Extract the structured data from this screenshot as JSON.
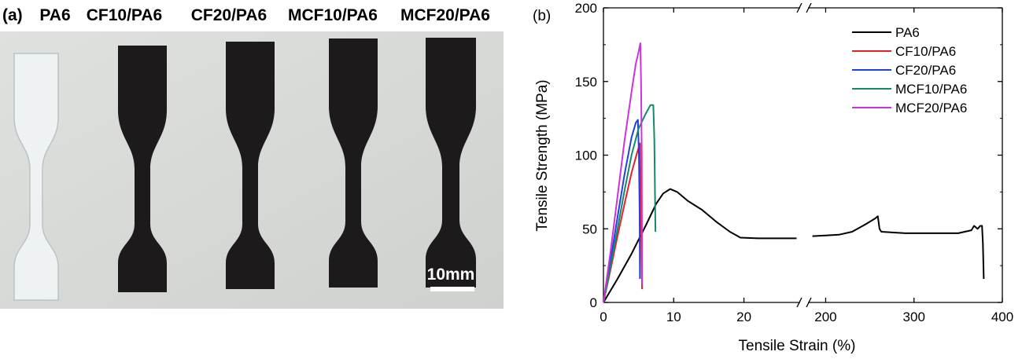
{
  "photo": {
    "panel_label": "(a)",
    "specimens": [
      "PA6",
      "CF10/PA6",
      "CF20/PA6",
      "MCF10/PA6",
      "MCF20/PA6"
    ],
    "scale_bar_label": "10mm",
    "colors": {
      "background": "#d6d8d6",
      "clear_specimen": "#eef2f3",
      "dark_specimen": "#1c1a1a"
    }
  },
  "chart_data": {
    "type": "line",
    "panel_label": "(b)",
    "xlabel": "Tensile Strain (%)",
    "ylabel": "Tensile Strength (MPa)",
    "ylim": [
      0,
      200
    ],
    "yticks": [
      0,
      50,
      100,
      150,
      200
    ],
    "x_axis_broken": true,
    "x_segments": [
      {
        "xlim": [
          0,
          28
        ],
        "ticks": [
          0,
          10,
          20
        ]
      },
      {
        "xlim": [
          180,
          400
        ],
        "ticks": [
          200,
          300,
          400
        ]
      }
    ],
    "grid": false,
    "legend_position": "top-right",
    "series": [
      {
        "name": "PA6",
        "color": "#000000",
        "points": [
          [
            0,
            0
          ],
          [
            2,
            16
          ],
          [
            4,
            33
          ],
          [
            6,
            52
          ],
          [
            7.5,
            67
          ],
          [
            8.5,
            74
          ],
          [
            9.5,
            77
          ],
          [
            10.5,
            75
          ],
          [
            12,
            69
          ],
          [
            14,
            63
          ],
          [
            16,
            55
          ],
          [
            18,
            48
          ],
          [
            19.5,
            44
          ],
          [
            22,
            43.5
          ],
          [
            25,
            43.5
          ],
          [
            27.5,
            43.5
          ],
          [
            185,
            45
          ],
          [
            200,
            45.5
          ],
          [
            215,
            46
          ],
          [
            230,
            48
          ],
          [
            245,
            53
          ],
          [
            256,
            57
          ],
          [
            259,
            58.5
          ],
          [
            261,
            50
          ],
          [
            263,
            48
          ],
          [
            290,
            47
          ],
          [
            320,
            47
          ],
          [
            350,
            47
          ],
          [
            365,
            49
          ],
          [
            368,
            52
          ],
          [
            372,
            50
          ],
          [
            375,
            52
          ],
          [
            377,
            52
          ],
          [
            378,
            40
          ],
          [
            379,
            16
          ]
        ]
      },
      {
        "name": "CF10/PA6",
        "color": "#e8202a",
        "points": [
          [
            0,
            0
          ],
          [
            1,
            22
          ],
          [
            2,
            45
          ],
          [
            3,
            67
          ],
          [
            4,
            88
          ],
          [
            4.8,
            102
          ],
          [
            5.2,
            108
          ],
          [
            5.3,
            80
          ],
          [
            5.4,
            40
          ],
          [
            5.5,
            9
          ]
        ]
      },
      {
        "name": "CF20/PA6",
        "color": "#2040e0",
        "points": [
          [
            0,
            0
          ],
          [
            1,
            28
          ],
          [
            2,
            58
          ],
          [
            3,
            87
          ],
          [
            4,
            112
          ],
          [
            4.6,
            122
          ],
          [
            4.9,
            124
          ],
          [
            5.05,
            100
          ],
          [
            5.15,
            60
          ],
          [
            5.2,
            16
          ]
        ]
      },
      {
        "name": "MCF10/PA6",
        "color": "#138a6a",
        "points": [
          [
            0,
            0
          ],
          [
            1,
            24
          ],
          [
            2,
            50
          ],
          [
            3,
            76
          ],
          [
            4,
            100
          ],
          [
            5,
            118
          ],
          [
            6,
            128
          ],
          [
            6.7,
            134
          ],
          [
            7.1,
            134
          ],
          [
            7.25,
            110
          ],
          [
            7.35,
            70
          ],
          [
            7.4,
            48
          ]
        ]
      },
      {
        "name": "MCF20/PA6",
        "color": "#cc33dd",
        "points": [
          [
            0,
            0
          ],
          [
            1,
            34
          ],
          [
            2,
            72
          ],
          [
            3,
            110
          ],
          [
            4,
            143
          ],
          [
            4.6,
            162
          ],
          [
            5,
            170
          ],
          [
            5.25,
            176
          ],
          [
            5.35,
            150
          ],
          [
            5.45,
            100
          ],
          [
            5.5,
            12
          ]
        ]
      }
    ]
  }
}
